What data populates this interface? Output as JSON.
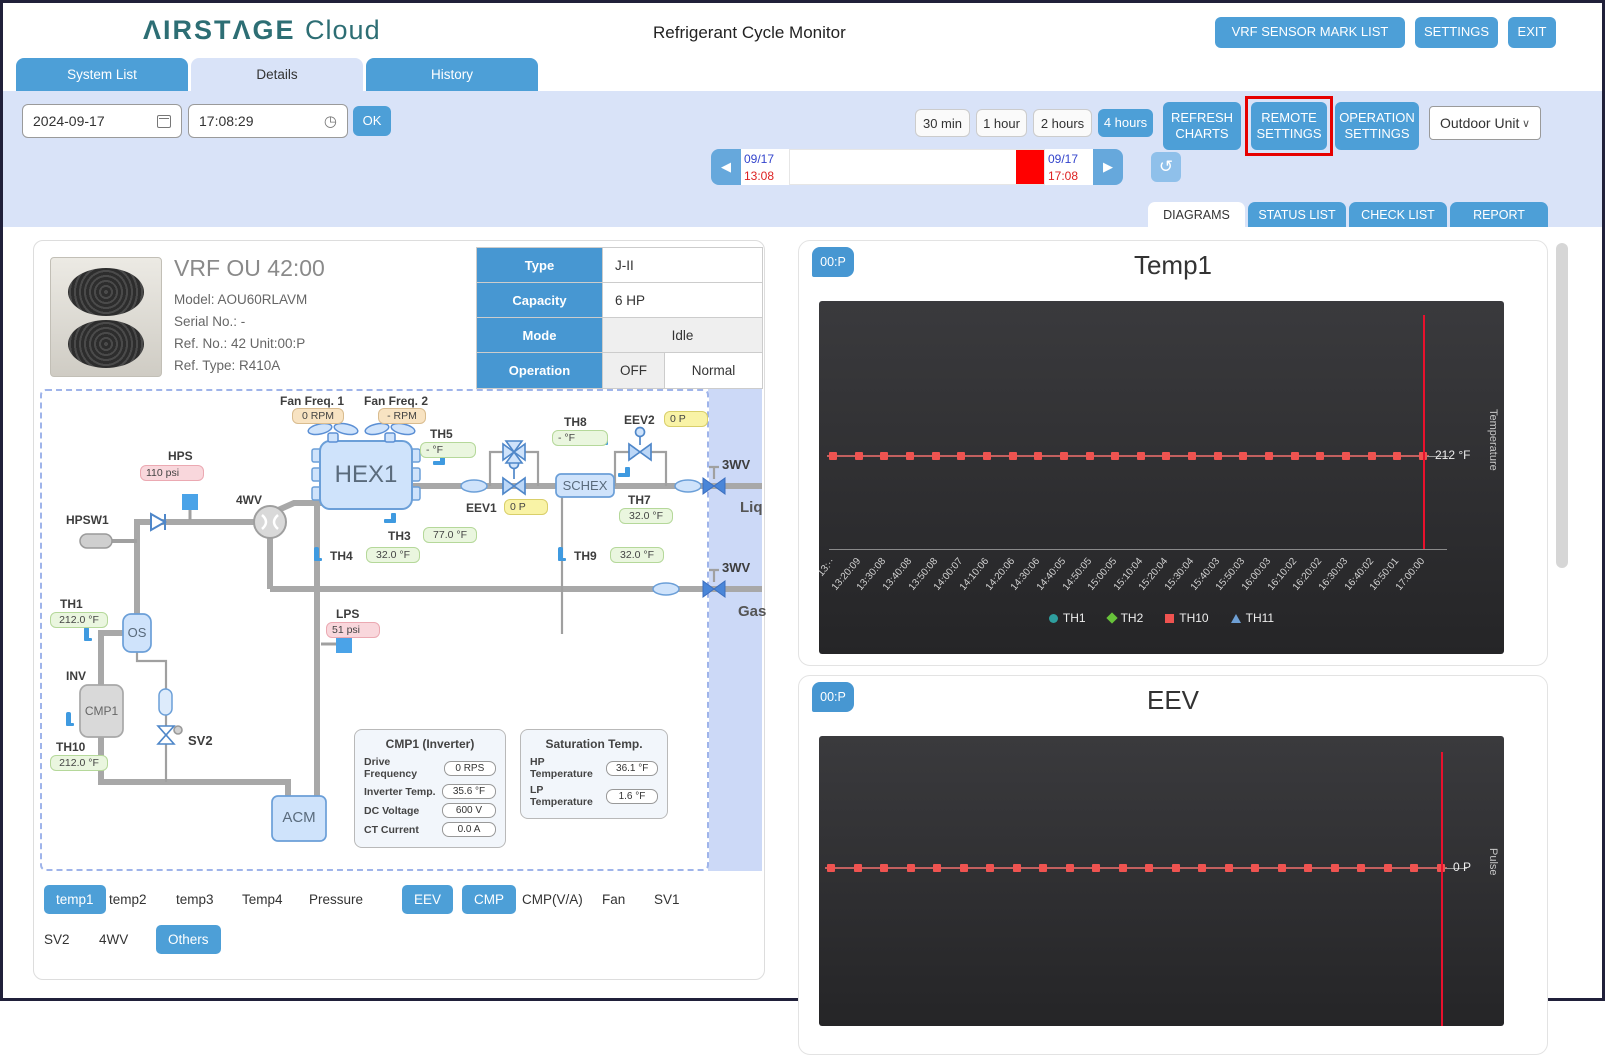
{
  "header": {
    "logo_1": "ΛIRSTΛGE",
    "logo_2": "Cloud",
    "title": "Refrigerant Cycle Monitor",
    "buttons": [
      "VRF SENSOR MARK LIST",
      "SETTINGS",
      "EXIT"
    ]
  },
  "main_tabs": {
    "items": [
      "System List",
      "Details",
      "History"
    ],
    "active": "Details"
  },
  "toolbar": {
    "date": "2024-09-17",
    "time": "17:08:29",
    "ok": "OK",
    "ranges": [
      "30 min",
      "1 hour",
      "2 hours",
      "4 hours"
    ],
    "active_range": "4 hours",
    "timeline": {
      "prev": "◀",
      "next": "▶",
      "reload": "↺",
      "start_date": "09/17",
      "start_time": "13:08",
      "end_date": "09/17",
      "end_time": "17:08"
    },
    "refresh_charts": "REFRESH CHARTS",
    "remote_settings": "REMOTE SETTINGS",
    "operation_settings": "OPERATION SETTINGS",
    "unit_select": "Outdoor Unit",
    "unit_select_chevron": "∨"
  },
  "view_tabs": {
    "items": [
      "DIAGRAMS",
      "STATUS LIST",
      "CHECK LIST",
      "REPORT"
    ],
    "active": "DIAGRAMS"
  },
  "unit_info": {
    "title": "VRF OU 42:00",
    "model": "Model: AOU60RLAVM",
    "serial": "Serial No.: -",
    "ref_no": "Ref. No.: 42 Unit:00:P",
    "ref_type": "Ref. Type: R410A"
  },
  "spec_table": {
    "type_label": "Type",
    "type_value": "J-II",
    "capacity_label": "Capacity",
    "capacity_value": "6 HP",
    "mode_label": "Mode",
    "mode_value": "Idle",
    "operation_label": "Operation",
    "operation_value1": "OFF",
    "operation_value2": "Normal"
  },
  "diagram": {
    "fan1_label": "Fan Freq. 1",
    "fan1_value": "0 RPM",
    "fan2_label": "Fan Freq. 2",
    "fan2_value": "- RPM",
    "hex1": "HEX1",
    "schex": "SCHEX",
    "os": "OS",
    "acm": "ACM",
    "cmp1": "CMP1",
    "inv_label": "INV",
    "wv4_label": "4WV",
    "sv2_label": "SV2",
    "hpsw1_label": "HPSW1",
    "hps_label": "HPS",
    "hps_value": "110 psi",
    "lps_label": "LPS",
    "lps_value": "51 psi",
    "th1_label": "TH1",
    "th1_value": "212.0 °F",
    "th3_label": "TH3",
    "th3_value": "77.0 °F",
    "th4_label": "TH4",
    "th4_value": "32.0 °F",
    "th5_label": "TH5",
    "th5_value": "- °F",
    "th7_label": "TH7",
    "th7_value": "32.0 °F",
    "th8_label": "TH8",
    "th8_value": "- °F",
    "th9_label": "TH9",
    "th9_value": "32.0 °F",
    "th10_label": "TH10",
    "th10_value": "212.0 °F",
    "eev1_label": "EEV1",
    "eev1_value": "0 P",
    "eev2_label": "EEV2",
    "eev2_value": "0 P",
    "wv3_liq_label": "3WV",
    "liq_label": "Liq",
    "wv3_gas_label": "3WV",
    "gas_label": "Gas",
    "inverter_box": {
      "title": "CMP1 (Inverter)",
      "rows": [
        {
          "label": "Drive Frequency",
          "value": "0 RPS"
        },
        {
          "label": "Inverter Temp.",
          "value": "35.6 °F"
        },
        {
          "label": "DC Voltage",
          "value": "600 V"
        },
        {
          "label": "CT Current",
          "value": "0.0 A"
        }
      ]
    },
    "saturation_box": {
      "title": "Saturation Temp.",
      "rows": [
        {
          "label": "HP Temperature",
          "value": "36.1 °F"
        },
        {
          "label": "LP Temperature",
          "value": "1.6 °F"
        }
      ]
    }
  },
  "sensor_tabs": {
    "row1": [
      "temp1",
      "temp2",
      "temp3",
      "Temp4",
      "Pressure",
      "EEV",
      "CMP",
      "CMP(V/A)",
      "Fan",
      "SV1"
    ],
    "row2": [
      "SV2",
      "4WV",
      "Others"
    ],
    "active": [
      "temp1",
      "EEV",
      "CMP",
      "Others"
    ]
  },
  "charts": [
    {
      "badge": "00:P",
      "title": "Temp1",
      "right_value": "212 °F",
      "y_label": "Temperature",
      "marker_count": 24,
      "x_ticks": [
        "13:··",
        "13:20:09",
        "13:30:08",
        "13:40:08",
        "13:50:08",
        "14:00:07",
        "14:10:06",
        "14:20:06",
        "14:30:06",
        "14:40:05",
        "14:50:05",
        "15:00:05",
        "15:10:04",
        "15:20:04",
        "15:30:04",
        "15:40:03",
        "15:50:03",
        "16:00:03",
        "16:10:02",
        "16:20:02",
        "16:30:03",
        "16:40:02",
        "16:50:01",
        "17:00:00"
      ],
      "legend": [
        {
          "label": "TH1",
          "color": "#2e9e9e",
          "shape": "circle"
        },
        {
          "label": "TH2",
          "color": "#67c23a",
          "shape": "diamond"
        },
        {
          "label": "TH10",
          "color": "#ef5350",
          "shape": "square"
        },
        {
          "label": "TH11",
          "color": "#6e9fd4",
          "shape": "triangle"
        }
      ]
    },
    {
      "badge": "00:P",
      "title": "EEV",
      "right_value": "0 P",
      "y_label": "Pulse",
      "marker_count": 24,
      "x_ticks": [],
      "legend": []
    }
  ],
  "chart_data": [
    {
      "type": "line",
      "title": "Temp1",
      "ylabel": "Temperature",
      "unit": "°F",
      "cursor_value": "212 °F",
      "x": [
        "13:··",
        "13:20:09",
        "13:30:08",
        "13:40:08",
        "13:50:08",
        "14:00:07",
        "14:10:06",
        "14:20:06",
        "14:30:06",
        "14:40:05",
        "14:50:05",
        "15:00:05",
        "15:10:04",
        "15:20:04",
        "15:30:04",
        "15:40:03",
        "15:50:03",
        "16:00:03",
        "16:10:02",
        "16:20:02",
        "16:30:03",
        "16:40:02",
        "16:50:01",
        "17:00:00"
      ],
      "series": [
        {
          "name": "TH1",
          "values": [
            212,
            212,
            212,
            212,
            212,
            212,
            212,
            212,
            212,
            212,
            212,
            212,
            212,
            212,
            212,
            212,
            212,
            212,
            212,
            212,
            212,
            212,
            212,
            212
          ]
        },
        {
          "name": "TH2",
          "values": [
            212,
            212,
            212,
            212,
            212,
            212,
            212,
            212,
            212,
            212,
            212,
            212,
            212,
            212,
            212,
            212,
            212,
            212,
            212,
            212,
            212,
            212,
            212,
            212
          ]
        },
        {
          "name": "TH10",
          "values": [
            212,
            212,
            212,
            212,
            212,
            212,
            212,
            212,
            212,
            212,
            212,
            212,
            212,
            212,
            212,
            212,
            212,
            212,
            212,
            212,
            212,
            212,
            212,
            212
          ]
        },
        {
          "name": "TH11",
          "values": [
            212,
            212,
            212,
            212,
            212,
            212,
            212,
            212,
            212,
            212,
            212,
            212,
            212,
            212,
            212,
            212,
            212,
            212,
            212,
            212,
            212,
            212,
            212,
            212
          ]
        }
      ]
    },
    {
      "type": "line",
      "title": "EEV",
      "ylabel": "Pulse",
      "unit": "P",
      "cursor_value": "0 P",
      "series": [
        {
          "name": "EEV",
          "values": [
            0,
            0,
            0,
            0,
            0,
            0,
            0,
            0,
            0,
            0,
            0,
            0,
            0,
            0,
            0,
            0,
            0,
            0,
            0,
            0,
            0,
            0,
            0,
            0
          ]
        }
      ]
    }
  ],
  "colors": {
    "accent_blue": "#4d9fd7",
    "table_header_blue": "#4797d2",
    "toolbar_bg": "#d9e3f8",
    "highlight_red": "#e60000",
    "chart_marker_red": "#ef5350",
    "chart_cursor_red": "#e8112d",
    "logo_teal": "#2d6e74"
  }
}
